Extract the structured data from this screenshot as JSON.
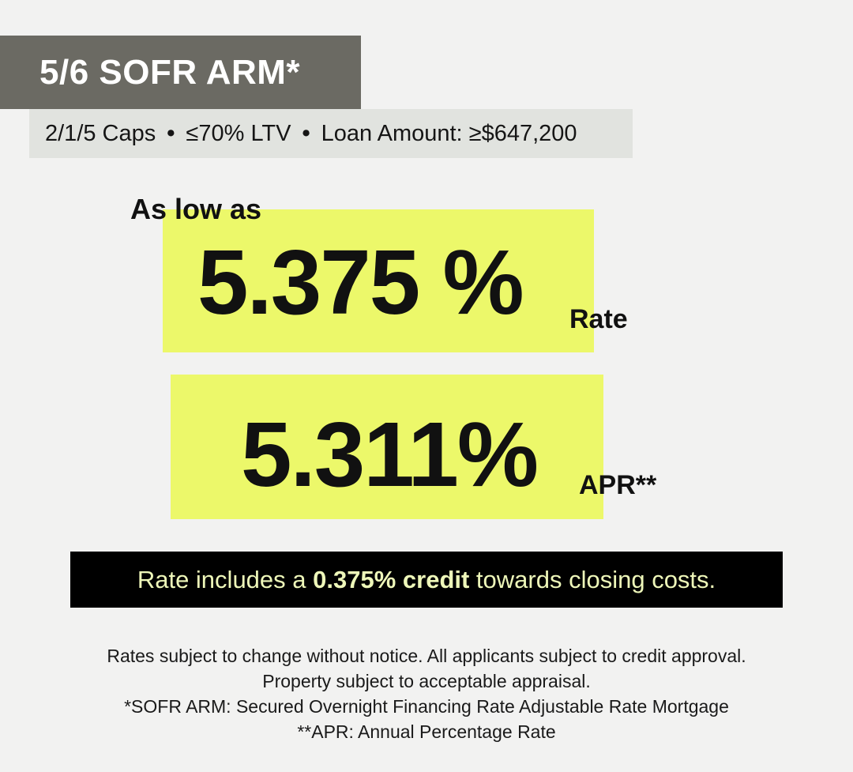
{
  "title": "5/6 SOFR ARM*",
  "subtitle": {
    "caps": "2/1/5 Caps",
    "separator": "•",
    "ltv": "≤70% LTV",
    "loan_amount": "Loan Amount: ≥$647,200"
  },
  "offer": {
    "intro": "As low as",
    "rate_value": "5.375 %",
    "rate_label": "Rate",
    "apr_value": "5.311%",
    "apr_label": "APR**"
  },
  "credit_note": {
    "prefix": "Rate includes a ",
    "highlight": "0.375% credit",
    "suffix": " towards closing costs."
  },
  "disclaimer": [
    "Rates subject to change without notice. All applicants subject to credit approval.",
    "Property subject to acceptable appraisal.",
    "*SOFR ARM: Secured Overnight Financing Rate Adjustable Rate Mortgage",
    "**APR: Annual Percentage Rate"
  ],
  "colors": {
    "title_bg": "#6b6a63",
    "subtitle_bg": "#e1e3df",
    "highlight": "#ecf86a",
    "credit_bg": "#000000",
    "credit_text": "#eef7b9",
    "page_bg": "#f2f2f1"
  }
}
